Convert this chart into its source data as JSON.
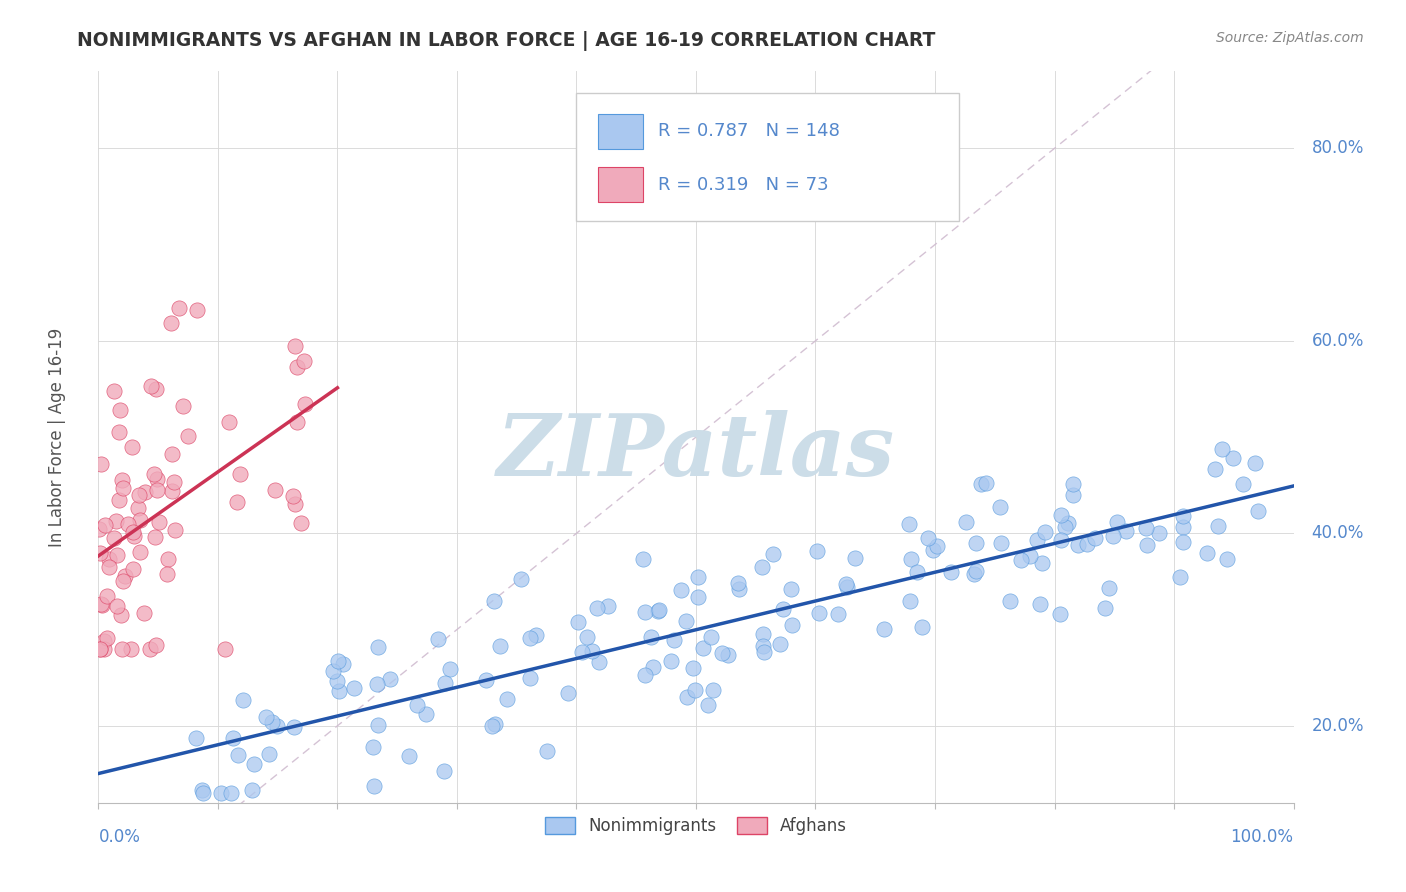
{
  "title": "NONIMMIGRANTS VS AFGHAN IN LABOR FORCE | AGE 16-19 CORRELATION CHART",
  "source_text": "Source: ZipAtlas.com",
  "ylabel": "In Labor Force | Age 16-19",
  "xlim": [
    0.0,
    1.0
  ],
  "ylim": [
    0.12,
    0.88
  ],
  "xticks": [
    0.0,
    0.1,
    0.2,
    0.3,
    0.4,
    0.5,
    0.6,
    0.7,
    0.8,
    0.9,
    1.0
  ],
  "yticks": [
    0.2,
    0.4,
    0.6,
    0.8
  ],
  "ytick_labels": [
    "20.0%",
    "40.0%",
    "60.0%",
    "80.0%"
  ],
  "blue_color": "#aac8f0",
  "blue_edge_color": "#5599dd",
  "blue_line_color": "#2255aa",
  "pink_color": "#f0aabb",
  "pink_edge_color": "#dd4466",
  "pink_line_color": "#cc3355",
  "diag_color": "#d0bcd0",
  "R_blue": 0.787,
  "N_blue": 148,
  "R_pink": 0.319,
  "N_pink": 73,
  "watermark": "ZIPatlas",
  "watermark_color": "#ccdde8",
  "legend_label_blue": "Nonimmigrants",
  "legend_label_pink": "Afghans",
  "background_color": "#ffffff",
  "grid_color": "#d8d8d8",
  "title_color": "#333333",
  "axis_label_color": "#5588cc",
  "blue_intercept": 0.155,
  "blue_slope": 0.295,
  "pink_intercept": 0.385,
  "pink_slope": 0.8,
  "seed": 7
}
